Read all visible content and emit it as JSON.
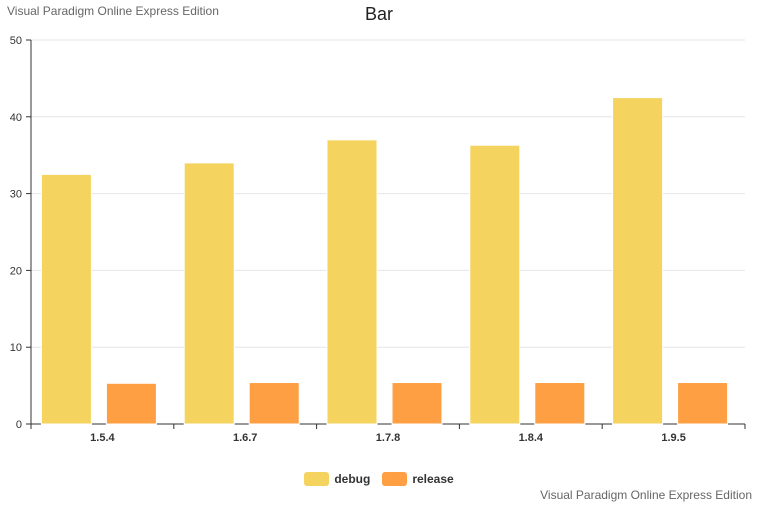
{
  "watermark": "Visual Paradigm Online Express Edition",
  "chart_data": {
    "type": "bar",
    "title": "Bar",
    "xlabel": "",
    "ylabel": "",
    "categories": [
      "1.5.4",
      "1.6.7",
      "1.7.8",
      "1.8.4",
      "1.9.5"
    ],
    "ylim": [
      0,
      50
    ],
    "yticks": [
      0,
      10,
      20,
      30,
      40,
      50
    ],
    "grid": true,
    "legend_position": "bottom-center",
    "series": [
      {
        "name": "debug",
        "color": "#f4d35e",
        "values": [
          32.5,
          34,
          37,
          36.3,
          42.5
        ]
      },
      {
        "name": "release",
        "color": "#ff9f43",
        "values": [
          5.3,
          5.4,
          5.4,
          5.4,
          5.4
        ]
      }
    ]
  }
}
